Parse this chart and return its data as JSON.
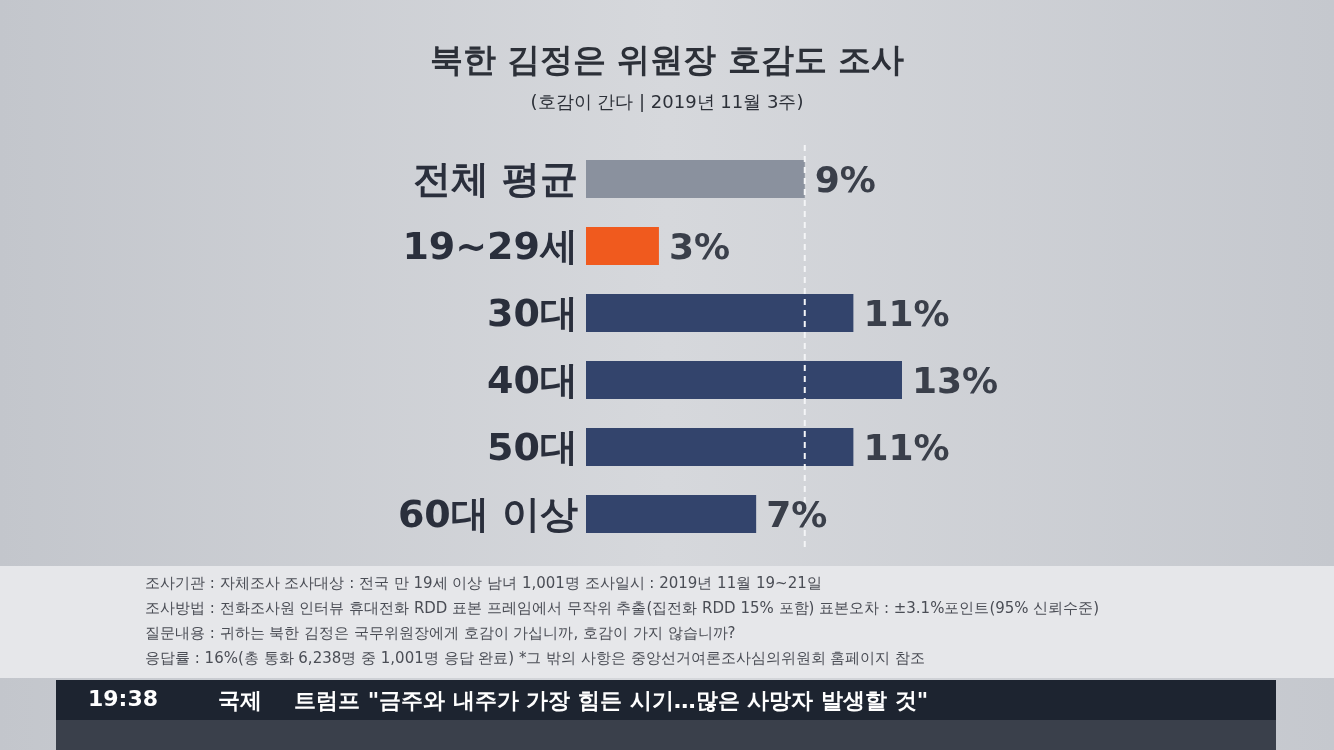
{
  "chart_data": {
    "type": "bar",
    "orientation": "horizontal",
    "title": "북한 김정은 위원장 호감도 조사",
    "subtitle": "(호감이 간다 | 2019년 11월 3주)",
    "categories": [
      "전체 평균",
      "19~29세",
      "30대",
      "40대",
      "50대",
      "60대 이상"
    ],
    "values": [
      9,
      3,
      11,
      13,
      11,
      7
    ],
    "colors": [
      "#8a919e",
      "#f05a1e",
      "#33446c",
      "#33446c",
      "#33446c",
      "#33446c"
    ],
    "value_labels": [
      "9%",
      "3%",
      "11%",
      "13%",
      "11%",
      "7%"
    ],
    "ref_lines": [
      {
        "axis": "x",
        "value": 9,
        "color": "#f4f5f7",
        "line_style": "dashed"
      }
    ],
    "annotations": [
      "조사기관 : 자체조사    조사대상 : 전국 만 19세 이상 남녀 1,001명    조사일시 : 2019년 11월 19~21일",
      "조사방법 : 전화조사원 인터뷰 휴대전화 RDD 표본 프레임에서 무작위 추출(집전화 RDD 15% 포함)    표본오차 : ±3.1%포인트(95% 신뢰수준)",
      "질문내용 : 귀하는 북한 김정은 국무위원장에게 호감이 가십니까, 호감이 가지 않습니까?",
      "응답률 : 16%(총 통화 6,238명 중 1,001명 응답 완료)    *그 밖의 사항은 중앙선거여론조사심의위원회 홈페이지 참조",
      "19:38",
      "국제",
      "트럼프 \"금주와 내주가 가장 힘든 시기…많은 사망자 발생할 것\""
    ]
  }
}
